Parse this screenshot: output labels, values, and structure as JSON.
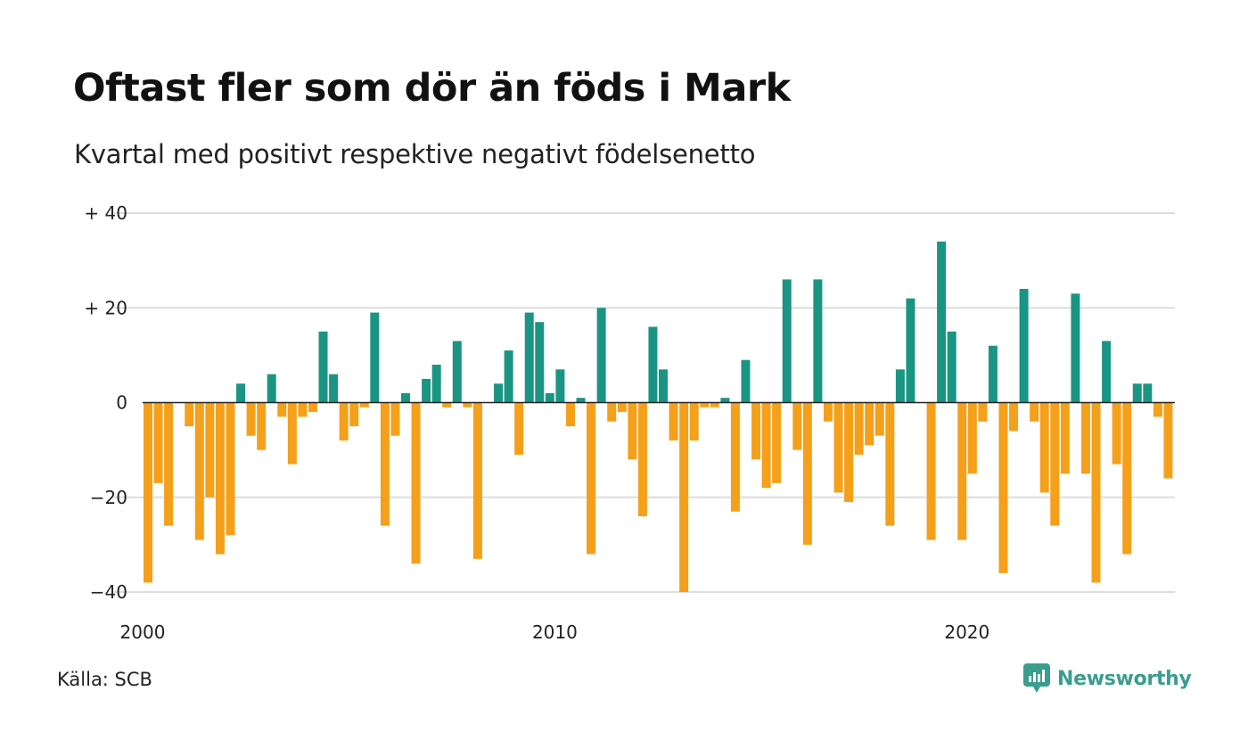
{
  "title": "Oftast fler som dör än föds i Mark",
  "subtitle": "Kvartal med positivt respektive negativt födelsenetto",
  "source": "Källa: SCB",
  "brand": "Newsworthy",
  "colors": {
    "positive": "#1a9584",
    "negative": "#f5a01a",
    "grid": "#dddddd",
    "brand": "#3a9e8f"
  },
  "chart_data": {
    "type": "bar",
    "ylim": [
      -40,
      40
    ],
    "yticks": [
      {
        "value": 40,
        "label": "+ 40"
      },
      {
        "value": 20,
        "label": "+ 20"
      },
      {
        "value": 0,
        "label": "0"
      },
      {
        "value": -20,
        "label": "−20"
      },
      {
        "value": -40,
        "label": "−40"
      }
    ],
    "xticks": [
      {
        "label": "2000",
        "index": 0
      },
      {
        "label": "2010",
        "index": 40
      },
      {
        "label": "2020",
        "index": 80
      }
    ],
    "grid": true,
    "start": "2000 Q1",
    "values": [
      -38,
      -17,
      -26,
      0,
      -5,
      -29,
      -20,
      -32,
      -28,
      4,
      -7,
      -10,
      6,
      -3,
      -13,
      -3,
      -2,
      15,
      6,
      -8,
      -5,
      -1,
      19,
      -26,
      -7,
      2,
      -34,
      5,
      8,
      -1,
      13,
      -1,
      -33,
      0,
      4,
      11,
      -11,
      19,
      17,
      2,
      7,
      -5,
      1,
      -32,
      20,
      -4,
      -2,
      -12,
      -24,
      16,
      7,
      -8,
      -40,
      -8,
      -1,
      -1,
      1,
      -23,
      9,
      -12,
      -18,
      -17,
      26,
      -10,
      -30,
      26,
      -4,
      -19,
      -21,
      -11,
      -9,
      -7,
      -26,
      7,
      22,
      0,
      -29,
      34,
      15,
      -29,
      -15,
      -4,
      12,
      -36,
      -6,
      24,
      -4,
      -19,
      -26,
      -15,
      23,
      -15,
      -38,
      13,
      -13,
      -32,
      4,
      4,
      -3,
      -16
    ]
  }
}
